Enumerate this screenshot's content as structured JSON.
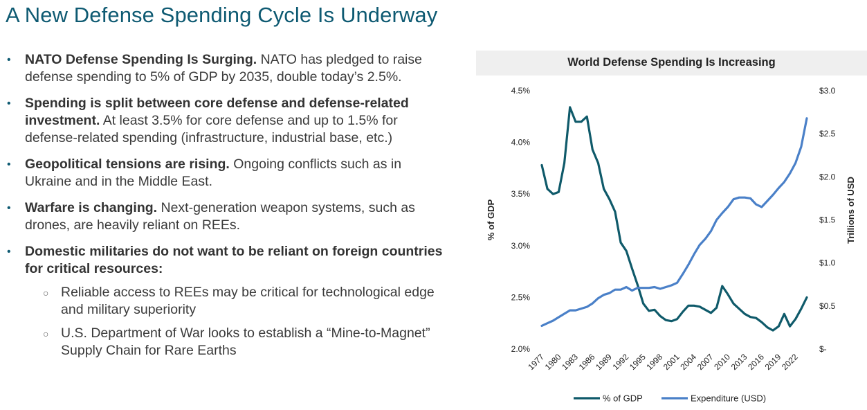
{
  "page": {
    "title": "A New Defense Spending Cycle Is Underway"
  },
  "bullets": [
    {
      "bold": "NATO Defense Spending Is Surging.",
      "text": " NATO has pledged to raise defense spending to 5% of GDP by 2035, double today’s 2.5%."
    },
    {
      "bold": "Spending is split between core defense and defense-related investment.",
      "text": " At least 3.5% for core defense and up to 1.5% for defense-related spending (infrastructure, industrial base, etc.)"
    },
    {
      "bold": "Geopolitical tensions are rising.",
      "text": " Ongoing conflicts such as in Ukraine and in the Middle East."
    },
    {
      "bold": "Warfare is changing.",
      "text": " Next-generation weapon systems, such as drones, are heavily reliant on REEs."
    },
    {
      "bold": "Domestic militaries do not want to be reliant on foreign countries for critical resources:",
      "text": ""
    }
  ],
  "sub_bullets": [
    "Reliable access to REEs may be critical for technological edge and military superiority",
    "U.S. Department of War looks to establish a “Mine-to-Magnet” Supply Chain for Rare Earths"
  ],
  "chart_data": {
    "type": "line",
    "title": "World Defense Spending Is Increasing",
    "x": [
      1977,
      1978,
      1979,
      1980,
      1981,
      1982,
      1983,
      1984,
      1985,
      1986,
      1987,
      1988,
      1989,
      1990,
      1991,
      1992,
      1993,
      1994,
      1995,
      1996,
      1997,
      1998,
      1999,
      2000,
      2001,
      2002,
      2003,
      2004,
      2005,
      2006,
      2007,
      2008,
      2009,
      2010,
      2011,
      2012,
      2013,
      2014,
      2015,
      2016,
      2017,
      2018,
      2019,
      2020,
      2021,
      2022,
      2023,
      2024
    ],
    "x_tick_labels": [
      "1977",
      "1980",
      "1983",
      "1986",
      "1989",
      "1992",
      "1995",
      "1998",
      "2001",
      "2004",
      "2007",
      "2010",
      "2013",
      "2016",
      "2019",
      "2022"
    ],
    "series": [
      {
        "name": "% of GDP",
        "axis": "left",
        "color": "#0f5a6a",
        "values": [
          3.78,
          3.55,
          3.5,
          3.52,
          3.8,
          4.34,
          4.2,
          4.2,
          4.25,
          3.93,
          3.8,
          3.55,
          3.45,
          3.33,
          3.03,
          2.95,
          2.78,
          2.62,
          2.44,
          2.37,
          2.38,
          2.32,
          2.28,
          2.27,
          2.29,
          2.36,
          2.42,
          2.42,
          2.41,
          2.38,
          2.35,
          2.4,
          2.61,
          2.53,
          2.44,
          2.39,
          2.34,
          2.31,
          2.3,
          2.26,
          2.21,
          2.18,
          2.22,
          2.34,
          2.22,
          2.29,
          2.39,
          2.5
        ]
      },
      {
        "name": "Expenditure (USD)",
        "axis": "right",
        "color": "#4a80c8",
        "values": [
          0.27,
          0.3,
          0.33,
          0.37,
          0.41,
          0.45,
          0.45,
          0.47,
          0.49,
          0.53,
          0.59,
          0.63,
          0.65,
          0.69,
          0.69,
          0.72,
          0.68,
          0.71,
          0.71,
          0.71,
          0.72,
          0.7,
          0.72,
          0.74,
          0.77,
          0.87,
          0.98,
          1.1,
          1.21,
          1.28,
          1.37,
          1.5,
          1.58,
          1.65,
          1.74,
          1.76,
          1.76,
          1.75,
          1.68,
          1.65,
          1.72,
          1.79,
          1.87,
          1.94,
          2.04,
          2.16,
          2.35,
          2.68
        ]
      }
    ],
    "y_left": {
      "label": "% of GDP",
      "min": 2.0,
      "max": 4.5,
      "ticks": [
        "2.0%",
        "2.5%",
        "3.0%",
        "3.5%",
        "4.0%",
        "4.5%"
      ]
    },
    "y_right": {
      "label": "Trillions of USD",
      "min": 0,
      "max": 3.0,
      "ticks": [
        "$-",
        "$0.5",
        "$1.0",
        "$1.5",
        "$2.0",
        "$2.5",
        "$3.0"
      ]
    },
    "grid": false,
    "legend": "bottom"
  }
}
